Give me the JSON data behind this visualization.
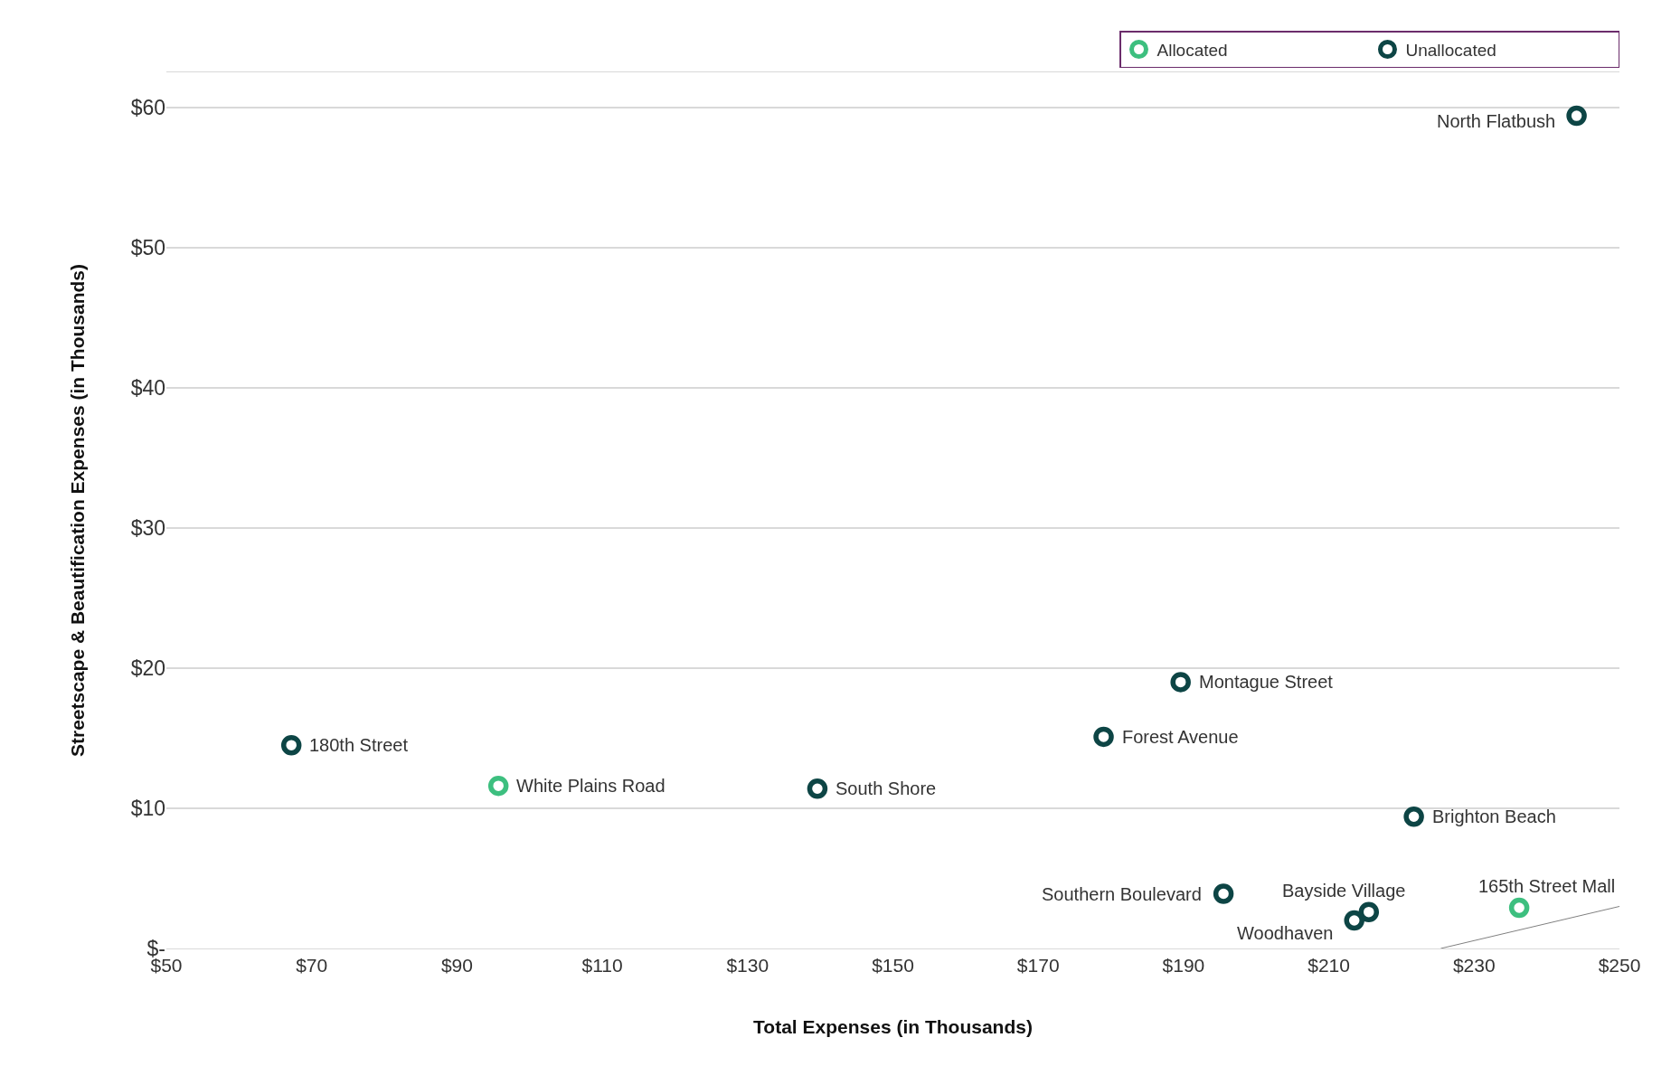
{
  "chart_data": {
    "type": "scatter",
    "xlabel": "Total Expenses (in Thousands)",
    "ylabel": "Streetscape & Beautification Expenses (in Thousands)",
    "xlim": [
      50,
      250
    ],
    "ylim": [
      0,
      62.5
    ],
    "xticks": [
      {
        "value": 50,
        "label": "$50"
      },
      {
        "value": 70,
        "label": "$70"
      },
      {
        "value": 90,
        "label": "$90"
      },
      {
        "value": 110,
        "label": "$110"
      },
      {
        "value": 130,
        "label": "$130"
      },
      {
        "value": 150,
        "label": "$150"
      },
      {
        "value": 170,
        "label": "$170"
      },
      {
        "value": 190,
        "label": "$190"
      },
      {
        "value": 210,
        "label": "$210"
      },
      {
        "value": 230,
        "label": "$230"
      },
      {
        "value": 250,
        "label": "$250"
      }
    ],
    "yticks": [
      {
        "value": 0,
        "label": "$-"
      },
      {
        "value": 10,
        "label": "$10"
      },
      {
        "value": 20,
        "label": "$20"
      },
      {
        "value": 30,
        "label": "$30"
      },
      {
        "value": 40,
        "label": "$40"
      },
      {
        "value": 50,
        "label": "$50"
      },
      {
        "value": 60,
        "label": "$60"
      }
    ],
    "grid": "y",
    "legend": "top right",
    "marker": "circle",
    "series": [
      {
        "name": "Allocated",
        "color": "#3dbf7f",
        "x": [
          95.7,
          236.2
        ],
        "values": [
          11.6,
          2.9
        ]
      },
      {
        "name": "Unallocated",
        "color": "#0d4545",
        "x": [
          244.1,
          189.6,
          179.0,
          67.2,
          139.6,
          221.7,
          195.5,
          215.5,
          213.5
        ],
        "values": [
          59.4,
          19.0,
          15.1,
          14.5,
          11.4,
          9.4,
          3.9,
          2.6,
          2.0
        ]
      },
      {
        "type": "line",
        "color": "#808080",
        "x": [
          225.4,
          250
        ],
        "values": [
          0,
          3.0
        ],
        "marker": "none"
      }
    ],
    "annotations": [
      {
        "text": "North Flatbush",
        "x": 244.1,
        "y": 59.4
      },
      {
        "text": "Montague Street",
        "x": 189.6,
        "y": 19.0
      },
      {
        "text": "Forest Avenue",
        "x": 179.0,
        "y": 15.1
      },
      {
        "text": "180th Street",
        "x": 67.2,
        "y": 14.5
      },
      {
        "text": "White Plains Road",
        "x": 95.7,
        "y": 11.6
      },
      {
        "text": "South Shore",
        "x": 139.6,
        "y": 11.4
      },
      {
        "text": "Brighton Beach",
        "x": 221.7,
        "y": 9.4
      },
      {
        "text": "Southern Boulevard",
        "x": 195.5,
        "y": 3.9
      },
      {
        "text": "Bayside Village",
        "x": 215.5,
        "y": 2.6
      },
      {
        "text": "Woodhaven",
        "x": 213.5,
        "y": 2.0
      },
      {
        "text": "165th Street Mall",
        "x": 236.2,
        "y": 2.9
      }
    ]
  }
}
